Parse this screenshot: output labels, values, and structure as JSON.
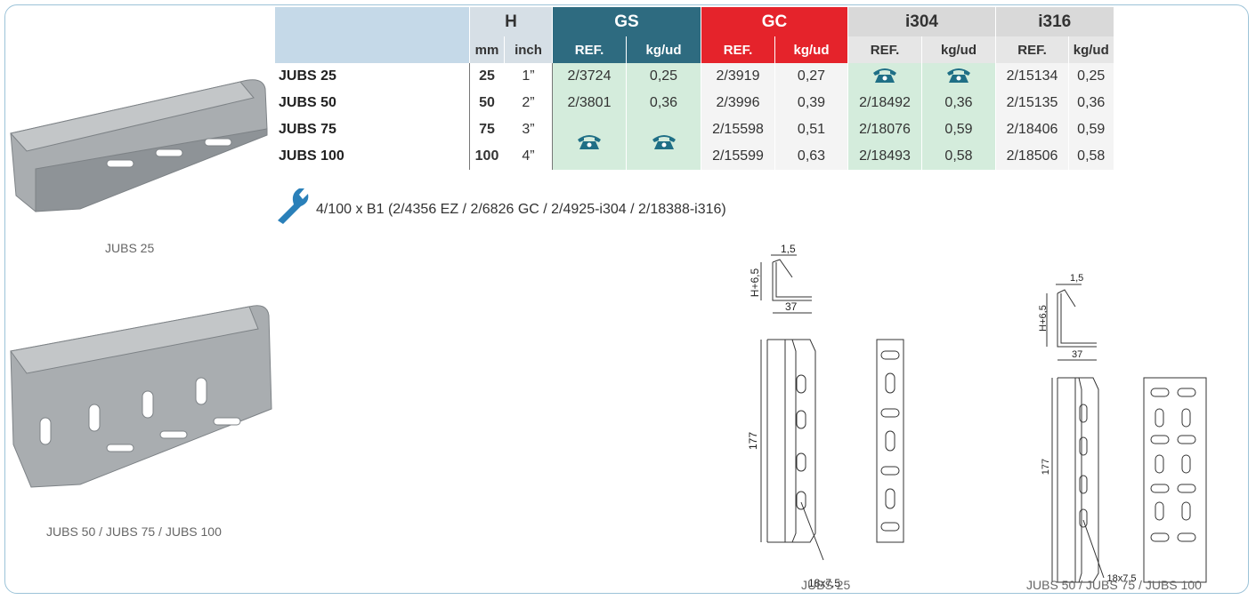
{
  "table": {
    "group_headers": [
      "H",
      "GS",
      "GC",
      "i304",
      "i316"
    ],
    "sub_headers": [
      "mm",
      "inch",
      "REF.",
      "kg/ud",
      "REF.",
      "kg/ud",
      "REF.",
      "kg/ud",
      "REF.",
      "kg/ud"
    ],
    "rows": [
      [
        "JUBS 25",
        "25",
        "1”",
        "2/3724",
        "0,25",
        "2/3919",
        "0,27",
        null,
        null,
        "2/15134",
        "0,25"
      ],
      [
        "JUBS 50",
        "50",
        "2”",
        "2/3801",
        "0,36",
        "2/3996",
        "0,39",
        "2/18492",
        "0,36",
        "2/15135",
        "0,36"
      ],
      [
        "JUBS 75",
        "75",
        "3”",
        null,
        null,
        "2/15598",
        "0,51",
        "2/18076",
        "0,59",
        "2/18406",
        "0,59"
      ],
      [
        "JUBS 100",
        "100",
        "4”",
        null,
        null,
        "2/15599",
        "0,63",
        "2/18493",
        "0,58",
        "2/18506",
        "0,58"
      ]
    ]
  },
  "accessory": "4/100 x B1 (2/4356 EZ / 2/6826 GC / 2/4925-i304 / 2/18388-i316)",
  "images": [
    {
      "caption": "JUBS 25"
    },
    {
      "caption": "JUBS 50 / JUBS 75 / JUBS 100"
    }
  ],
  "drawings": [
    {
      "thickness": "1,5",
      "height": "H+6,5",
      "width": "37",
      "length": "177",
      "hole": "18x7,5",
      "caption": "JUBS 25"
    },
    {
      "thickness": "1,5",
      "height": "H+6,5",
      "width": "37",
      "length": "177",
      "hole": "18x7,5",
      "caption": "JUBS 50 / JUBS 75 / JUBS 100"
    }
  ]
}
